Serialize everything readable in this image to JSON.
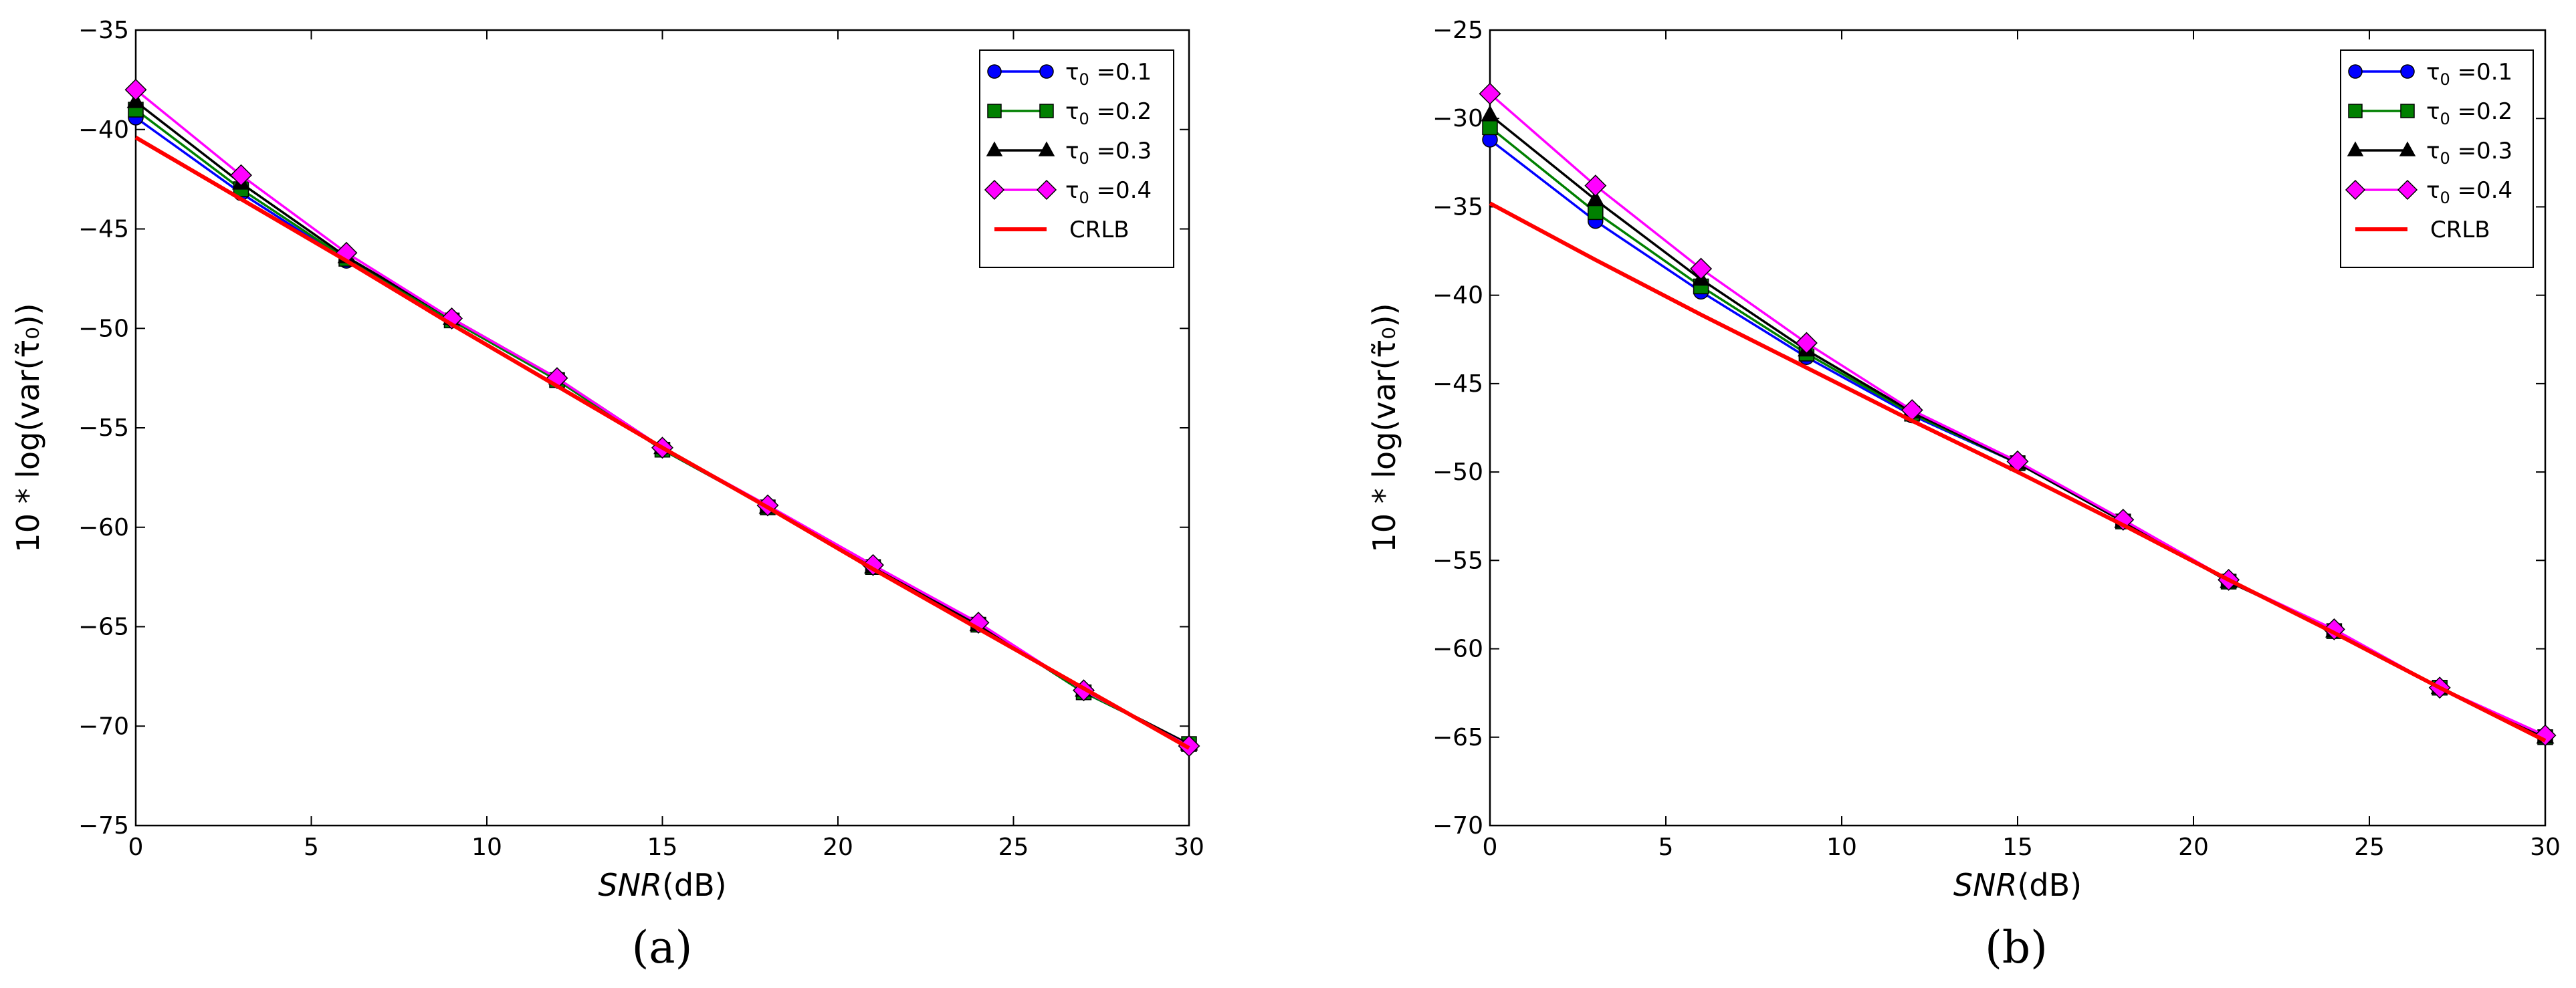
{
  "chart_data": [
    {
      "type": "line",
      "panel_label": "(a)",
      "xlabel_italic": "SNR",
      "xlabel_unit": "(dB)",
      "ylabel": "10 * log(var(τ̃₀))",
      "xlim": [
        0,
        30
      ],
      "ylim": [
        -75,
        -35
      ],
      "xticks": [
        0,
        5,
        10,
        15,
        20,
        25,
        30
      ],
      "yticks": [
        -75,
        -70,
        -65,
        -60,
        -55,
        -50,
        -45,
        -40,
        -35
      ],
      "grid": false,
      "legend_position": "top-right",
      "x": [
        0,
        3,
        6,
        9,
        12,
        15,
        18,
        21,
        24,
        27,
        30
      ],
      "series": [
        {
          "name": "τ0 =0.1",
          "marker": "circle",
          "color": "#0000ff",
          "values": [
            -39.4,
            -43.2,
            -46.6,
            -49.6,
            -52.6,
            -56.1,
            -59.0,
            -62.0,
            -64.9,
            -68.3,
            -70.9
          ]
        },
        {
          "name": "τ0 =0.2",
          "marker": "square",
          "color": "#008000",
          "values": [
            -39.0,
            -43.0,
            -46.5,
            -49.6,
            -52.6,
            -56.1,
            -59.0,
            -62.0,
            -64.9,
            -68.3,
            -70.9
          ]
        },
        {
          "name": "τ0 =0.3",
          "marker": "triangle",
          "color": "#000000",
          "values": [
            -38.6,
            -42.7,
            -46.4,
            -49.5,
            -52.5,
            -56.0,
            -59.0,
            -62.0,
            -64.9,
            -68.2,
            -70.9
          ]
        },
        {
          "name": "τ0 =0.4",
          "marker": "diamond",
          "color": "#ff00ff",
          "values": [
            -38.0,
            -42.3,
            -46.2,
            -49.5,
            -52.5,
            -56.0,
            -58.9,
            -61.9,
            -64.8,
            -68.2,
            -71.0
          ]
        },
        {
          "name": "CRLB",
          "marker": "none",
          "color": "#ff0000",
          "values": [
            -40.4,
            -43.5,
            -46.6,
            -49.8,
            -52.9,
            -56.0,
            -59.0,
            -62.1,
            -65.1,
            -68.1,
            -71.1
          ]
        }
      ]
    },
    {
      "type": "line",
      "panel_label": "(b)",
      "xlabel_italic": "SNR",
      "xlabel_unit": "(dB)",
      "ylabel": "10 * log(var(τ̃₀))",
      "xlim": [
        0,
        30
      ],
      "ylim": [
        -70,
        -25
      ],
      "xticks": [
        0,
        5,
        10,
        15,
        20,
        25,
        30
      ],
      "yticks": [
        -70,
        -65,
        -60,
        -55,
        -50,
        -45,
        -40,
        -35,
        -30,
        -25
      ],
      "grid": false,
      "legend_position": "top-right",
      "x": [
        0,
        3,
        6,
        9,
        12,
        15,
        18,
        21,
        24,
        27,
        30
      ],
      "series": [
        {
          "name": "τ0 =0.1",
          "marker": "circle",
          "color": "#0000ff",
          "values": [
            -31.2,
            -35.8,
            -39.8,
            -43.5,
            -46.8,
            -49.5,
            -52.8,
            -56.2,
            -59.0,
            -62.2,
            -65.0
          ]
        },
        {
          "name": "τ0 =0.2",
          "marker": "square",
          "color": "#008000",
          "values": [
            -30.5,
            -35.3,
            -39.5,
            -43.3,
            -46.7,
            -49.5,
            -52.8,
            -56.2,
            -59.0,
            -62.2,
            -65.0
          ]
        },
        {
          "name": "τ0 =0.3",
          "marker": "triangle",
          "color": "#000000",
          "values": [
            -29.8,
            -34.6,
            -39.1,
            -43.1,
            -46.6,
            -49.5,
            -52.8,
            -56.2,
            -59.0,
            -62.2,
            -65.0
          ]
        },
        {
          "name": "τ0 =0.4",
          "marker": "diamond",
          "color": "#ff00ff",
          "values": [
            -28.6,
            -33.8,
            -38.5,
            -42.7,
            -46.5,
            -49.4,
            -52.7,
            -56.1,
            -58.9,
            -62.2,
            -64.9
          ]
        },
        {
          "name": "CRLB",
          "marker": "none",
          "color": "#ff0000",
          "values": [
            -34.8,
            -38.0,
            -41.1,
            -44.1,
            -47.1,
            -50.0,
            -53.0,
            -56.1,
            -59.1,
            -62.2,
            -65.2
          ]
        }
      ]
    }
  ]
}
